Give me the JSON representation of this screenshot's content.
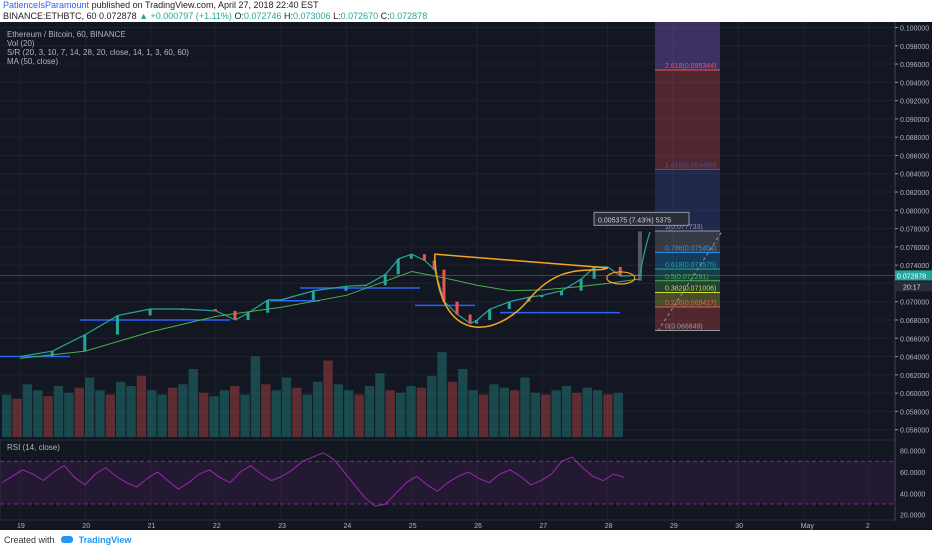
{
  "header": {
    "publisher": "PatienceIsParamount",
    "published_text": "published on TradingView.com, April 27, 2018 22:40 EST",
    "symbol": "BINANCE:ETHBTC, 60",
    "last": "0.072878",
    "change": "▲ +0.000797 (+1.11%)",
    "o_label": "O:",
    "o": "0.072746",
    "h_label": "H:",
    "h": "0.073006",
    "l_label": "L:",
    "l": "0.072670",
    "c_label": "C:",
    "c": "0.072878"
  },
  "legend": {
    "title": "Ethereum / Bitcoin, 60, BINANCE",
    "vol": "Vol (20)",
    "sr": "S/R (20, 3, 10, 7, 14, 28, 20, close, 14, 1, 3, 60, 60)",
    "ma": "MA (50, close)",
    "rsi": "RSI (14, close)"
  },
  "footer": {
    "created_with": "Created with",
    "brand": "TradingView"
  },
  "colors": {
    "bg": "#131722",
    "up": "#26a69a",
    "down": "#ef5350",
    "ma": "#4caf50",
    "cup": "#f5a623",
    "sr": "#2962ff",
    "rsi": "#9c27b0",
    "grid": "#1e2230"
  },
  "chart_data": {
    "type": "line",
    "title": "Ethereum / Bitcoin, 60, BINANCE",
    "ylim": [
      0.0552,
      0.1006
    ],
    "price_ticks": [
      "0.100000",
      "0.098000",
      "0.096000",
      "0.094000",
      "0.092000",
      "0.090000",
      "0.088000",
      "0.086000",
      "0.084000",
      "0.082000",
      "0.080000",
      "0.078000",
      "0.076000",
      "0.074000",
      "0.072000",
      "0.070000",
      "0.068000",
      "0.066000",
      "0.064000",
      "0.062000",
      "0.060000",
      "0.058000",
      "0.056000"
    ],
    "x_ticks": [
      "19",
      "20",
      "21",
      "22",
      "23",
      "24",
      "25",
      "26",
      "27",
      "28",
      "29",
      "30",
      "May",
      "2"
    ],
    "series": [
      {
        "name": "ETHBTC",
        "x_day": [
          19.0,
          19.5,
          20.0,
          20.5,
          21.0,
          21.5,
          22.0,
          22.3,
          22.5,
          22.8,
          23.0,
          23.5,
          24.0,
          24.3,
          24.6,
          24.8,
          25.0,
          25.2,
          25.35,
          25.5,
          25.7,
          25.9,
          26.0,
          26.2,
          26.5,
          26.8,
          27.0,
          27.3,
          27.6,
          27.8,
          28.0,
          28.2,
          28.5
        ],
        "close": [
          0.064,
          0.0646,
          0.0664,
          0.0685,
          0.0692,
          0.0692,
          0.069,
          0.068,
          0.0688,
          0.0702,
          0.0702,
          0.0712,
          0.0717,
          0.0718,
          0.073,
          0.0747,
          0.0752,
          0.0745,
          0.0735,
          0.07,
          0.0686,
          0.0676,
          0.068,
          0.0692,
          0.07,
          0.0705,
          0.0707,
          0.0712,
          0.0725,
          0.0738,
          0.0738,
          0.0728,
          0.0729
        ]
      },
      {
        "name": "MA (50, close)",
        "x_day": [
          19.0,
          20.0,
          21.0,
          22.0,
          23.0,
          24.0,
          25.0,
          25.5,
          26.0,
          26.5,
          27.0,
          27.5,
          28.0,
          28.5
        ],
        "values": [
          0.0638,
          0.0646,
          0.0667,
          0.0684,
          0.0694,
          0.0707,
          0.0733,
          0.0726,
          0.0718,
          0.0712,
          0.0713,
          0.0716,
          0.072,
          0.0725
        ]
      }
    ],
    "volume": [
      0.5,
      0.45,
      0.62,
      0.55,
      0.48,
      0.6,
      0.52,
      0.58,
      0.7,
      0.55,
      0.5,
      0.65,
      0.6,
      0.72,
      0.55,
      0.5,
      0.58,
      0.62,
      0.8,
      0.52,
      0.48,
      0.55,
      0.6,
      0.5,
      0.95,
      0.62,
      0.55,
      0.7,
      0.58,
      0.5,
      0.65,
      0.9,
      0.62,
      0.55,
      0.5,
      0.6,
      0.75,
      0.55,
      0.52,
      0.6,
      0.58,
      0.72,
      1.0,
      0.65,
      0.8,
      0.55,
      0.5,
      0.62,
      0.58,
      0.55,
      0.7,
      0.52,
      0.5,
      0.55,
      0.6,
      0.52,
      0.58,
      0.55,
      0.5,
      0.52
    ],
    "rsi": {
      "name": "RSI (14, close)",
      "levels": [
        70,
        30
      ],
      "ticks": [
        "80.0000",
        "60.0000",
        "40.0000",
        "20.0000"
      ],
      "values": [
        50,
        56,
        62,
        58,
        52,
        60,
        66,
        55,
        48,
        58,
        64,
        56,
        50,
        46,
        54,
        60,
        52,
        44,
        50,
        58,
        62,
        55,
        50,
        60,
        66,
        58,
        52,
        56,
        62,
        70,
        74,
        78,
        72,
        60,
        48,
        36,
        28,
        30,
        40,
        50,
        56,
        48,
        42,
        50,
        56,
        60,
        54,
        50,
        58,
        62,
        56,
        48,
        52,
        58,
        70,
        74,
        64,
        56,
        52,
        58,
        55
      ]
    },
    "fibonacci": [
      {
        "label": "2.618(0.095344)",
        "value": 0.095344,
        "color": "#ef5350"
      },
      {
        "label": "1.618(0.084460)",
        "value": 0.08446,
        "color": "#3f51b5"
      },
      {
        "label": "1(0.077733)",
        "value": 0.077733,
        "color": "#9598a1"
      },
      {
        "label": "0.786(0.075404)",
        "value": 0.075404,
        "color": "#2196f3"
      },
      {
        "label": "0.618(0.073575)",
        "value": 0.073575,
        "color": "#26a69a"
      },
      {
        "label": "0.5(0.072291)",
        "value": 0.072291,
        "color": "#4caf50"
      },
      {
        "label": "0.382(0.071006)",
        "value": 0.071006,
        "color": "#cddc39"
      },
      {
        "label": "0.236(0.069417)",
        "value": 0.069417,
        "color": "#ef5350"
      },
      {
        "label": "0(0.066849)",
        "value": 0.066849,
        "color": "#9598a1"
      }
    ],
    "measure_label": "0.005375 (7.43%) 5375",
    "current_price_label": "0.072878",
    "countdown_label": "20:17"
  }
}
